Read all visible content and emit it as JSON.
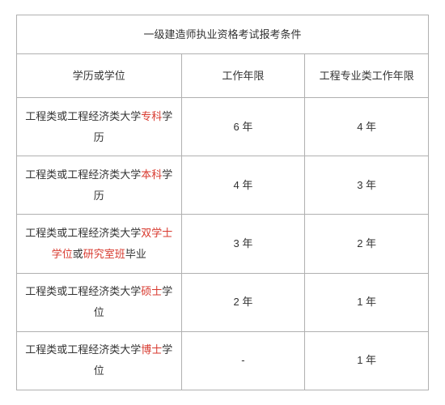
{
  "title": "一级建造师执业资格考试报考条件",
  "headers": {
    "edu": "学历或学位",
    "work": "工作年限",
    "eng": "工程专业类工作年限"
  },
  "rows": [
    {
      "edu_pre": "工程类或工程经济类大学",
      "edu_hl": "专科",
      "edu_post": "学历",
      "work": "6 年",
      "eng": "4 年"
    },
    {
      "edu_pre": "工程类或工程经济类大学",
      "edu_hl": "本科",
      "edu_post": "学历",
      "work": "4 年",
      "eng": "3 年"
    },
    {
      "edu_pre": "工程类或工程经济类大学",
      "edu_hl": "双学士学位",
      "edu_mid": "或",
      "edu_hl2": "研究室班",
      "edu_post": "毕业",
      "work": "3 年",
      "eng": "2 年"
    },
    {
      "edu_pre": "工程类或工程经济类大学",
      "edu_hl": "硕士",
      "edu_post": "学位",
      "work": "2 年",
      "eng": "1 年"
    },
    {
      "edu_pre": "工程类或工程经济类大学",
      "edu_hl": "博士",
      "edu_post": "学位",
      "work": "-",
      "eng": "1 年"
    }
  ],
  "colors": {
    "highlight": "#d83a2f",
    "border": "#b0b0b0",
    "text": "#333333",
    "bg": "#ffffff"
  }
}
